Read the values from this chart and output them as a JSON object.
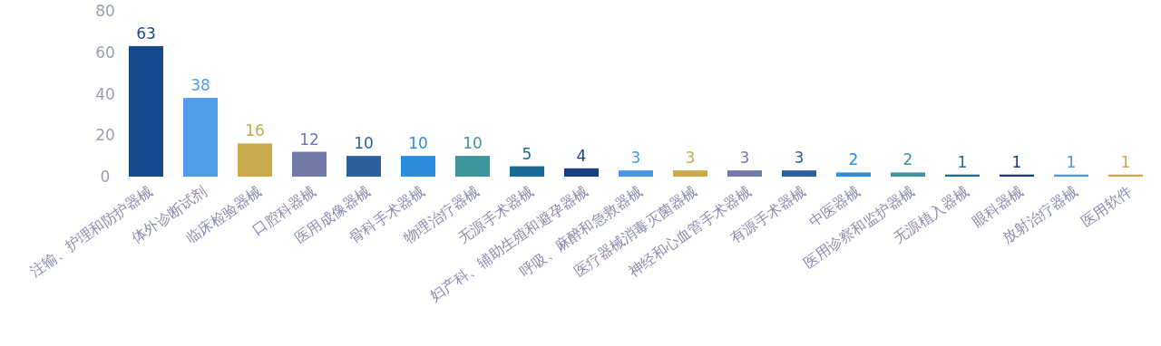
{
  "chart_data": {
    "type": "bar",
    "categories": [
      "注输、护理和防护器械",
      "体外诊断试剂",
      "临床检验器械",
      "口腔科器械",
      "医用成像器械",
      "骨科手术器械",
      "物理治疗器械",
      "无源手术器械",
      "妇产科、辅助生殖和避孕器械",
      "呼吸、麻醉和急救器械",
      "医疗器械消毒灭菌器械",
      "神经和心血管手术器械",
      "有源手术器械",
      "中医器械",
      "医用诊察和监护器械",
      "无源植入器械",
      "眼科器械",
      "放射治疗器械",
      "医用软件"
    ],
    "values": [
      63,
      38,
      16,
      12,
      10,
      10,
      10,
      5,
      4,
      3,
      3,
      3,
      3,
      2,
      2,
      1,
      1,
      1,
      1
    ],
    "colors": [
      "#174a8c",
      "#4f9de9",
      "#c9aa4c",
      "#737aa8",
      "#2d5f9c",
      "#2b8ce0",
      "#3c969c",
      "#1b6a96",
      "#173f80",
      "#4a96e6",
      "#c9aa4c",
      "#737aa8",
      "#2d5f9c",
      "#2b8ce0",
      "#3c969c",
      "#1b6a96",
      "#173f80",
      "#4a96e6",
      "#c9aa4c"
    ],
    "ylim": [
      0,
      80
    ],
    "yticks": [
      0,
      20,
      40,
      60,
      80
    ],
    "data_labels": true,
    "grid": false
  }
}
